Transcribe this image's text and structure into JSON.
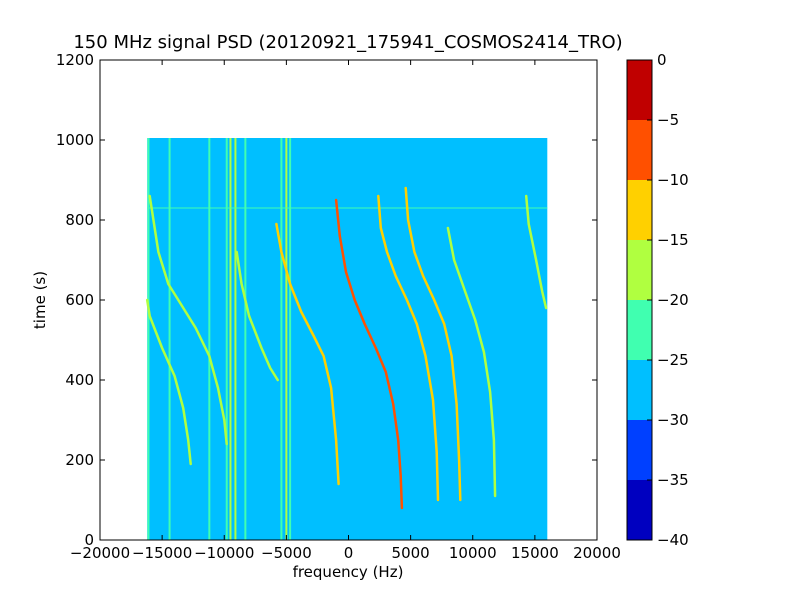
{
  "chart_data": {
    "type": "heatmap",
    "title": "150 MHz signal PSD (20120921_175941_COSMOS2414_TRO)",
    "xlabel": "frequency (Hz)",
    "ylabel": "time (s)",
    "xlim": [
      -20000,
      20000
    ],
    "ylim": [
      0,
      1200
    ],
    "x_ticks": [
      -20000,
      -15000,
      -10000,
      -5000,
      0,
      5000,
      10000,
      15000,
      20000
    ],
    "x_tick_labels": [
      "−20000",
      "−15000",
      "−10000",
      "−5000",
      "0",
      "5000",
      "10000",
      "15000",
      "20000"
    ],
    "y_ticks": [
      0,
      200,
      400,
      600,
      800,
      1000,
      1200
    ],
    "y_tick_labels": [
      "0",
      "200",
      "400",
      "600",
      "800",
      "1000",
      "1200"
    ],
    "data_extent": {
      "freq_min": -16200,
      "freq_max": 16000,
      "time_min": 0,
      "time_max": 1005
    },
    "background_level_db": -28,
    "colorbar": {
      "levels": [
        -40,
        -35,
        -30,
        -25,
        -20,
        -15,
        -10,
        -5,
        0
      ],
      "tick_labels": [
        "−40",
        "−35",
        "−30",
        "−25",
        "−20",
        "−15",
        "−10",
        "−5",
        "0"
      ],
      "colors": [
        "#0000c0",
        "#0040ff",
        "#00bfff",
        "#40ffb0",
        "#b0ff40",
        "#ffd000",
        "#ff5000",
        "#c00000"
      ]
    },
    "vertical_lines": [
      {
        "freq": -16100,
        "level_db": -24
      },
      {
        "freq": -14400,
        "level_db": -24
      },
      {
        "freq": -11200,
        "level_db": -24
      },
      {
        "freq": -9800,
        "level_db": -22
      },
      {
        "freq": -9500,
        "level_db": -18
      },
      {
        "freq": -9100,
        "level_db": -18
      },
      {
        "freq": -8300,
        "level_db": -22
      },
      {
        "freq": -5400,
        "level_db": -22
      },
      {
        "freq": -5000,
        "level_db": -18
      },
      {
        "freq": -4700,
        "level_db": -22
      }
    ],
    "horizontal_lines": [
      {
        "time": 830,
        "level_db": -24
      }
    ],
    "tracks": [
      {
        "name": "",
        "level_db": -16,
        "points": [
          [
            -16000,
            860
          ],
          [
            -15800,
            820
          ],
          [
            -15300,
            720
          ],
          [
            -14500,
            640
          ],
          [
            -13500,
            590
          ],
          [
            -12300,
            530
          ],
          [
            -11200,
            460
          ],
          [
            -10500,
            380
          ],
          [
            -10000,
            300
          ],
          [
            -9800,
            240
          ]
        ]
      },
      {
        "name": "",
        "level_db": -20,
        "points": [
          [
            -16200,
            600
          ],
          [
            -16000,
            560
          ],
          [
            -15000,
            480
          ],
          [
            -14000,
            410
          ],
          [
            -13300,
            330
          ],
          [
            -12900,
            250
          ],
          [
            -12700,
            190
          ]
        ]
      },
      {
        "name": "",
        "level_db": -18,
        "points": [
          [
            -9000,
            720
          ],
          [
            -8600,
            640
          ],
          [
            -8000,
            560
          ],
          [
            -7000,
            480
          ],
          [
            -6300,
            430
          ],
          [
            -5700,
            400
          ]
        ]
      },
      {
        "name": "",
        "level_db": -15,
        "points": [
          [
            -5800,
            790
          ],
          [
            -5400,
            720
          ],
          [
            -4700,
            640
          ],
          [
            -3800,
            570
          ],
          [
            -2800,
            510
          ],
          [
            -2000,
            460
          ],
          [
            -1400,
            380
          ],
          [
            -1000,
            250
          ],
          [
            -800,
            140
          ]
        ]
      },
      {
        "name": "",
        "level_db": -8,
        "points": [
          [
            -1000,
            850
          ],
          [
            -700,
            760
          ],
          [
            -200,
            670
          ],
          [
            500,
            600
          ],
          [
            1300,
            540
          ],
          [
            2200,
            480
          ],
          [
            3000,
            420
          ],
          [
            3600,
            340
          ],
          [
            4000,
            250
          ],
          [
            4200,
            160
          ],
          [
            4300,
            80
          ]
        ]
      },
      {
        "name": "",
        "level_db": -12,
        "points": [
          [
            2400,
            860
          ],
          [
            2600,
            780
          ],
          [
            3100,
            720
          ],
          [
            3800,
            660
          ],
          [
            4700,
            600
          ],
          [
            5500,
            540
          ],
          [
            6200,
            460
          ],
          [
            6800,
            350
          ],
          [
            7100,
            220
          ],
          [
            7200,
            100
          ]
        ]
      },
      {
        "name": "",
        "level_db": -12,
        "points": [
          [
            4600,
            880
          ],
          [
            4800,
            800
          ],
          [
            5300,
            720
          ],
          [
            6000,
            660
          ],
          [
            6900,
            600
          ],
          [
            7700,
            540
          ],
          [
            8300,
            460
          ],
          [
            8700,
            340
          ],
          [
            8900,
            200
          ],
          [
            9000,
            100
          ]
        ]
      },
      {
        "name": "",
        "level_db": -18,
        "points": [
          [
            8000,
            780
          ],
          [
            8500,
            700
          ],
          [
            9400,
            620
          ],
          [
            10200,
            550
          ],
          [
            10900,
            470
          ],
          [
            11400,
            370
          ],
          [
            11700,
            250
          ],
          [
            11800,
            110
          ]
        ]
      },
      {
        "name": "",
        "level_db": -20,
        "points": [
          [
            14300,
            860
          ],
          [
            14500,
            790
          ],
          [
            15100,
            700
          ],
          [
            15600,
            620
          ],
          [
            15900,
            580
          ]
        ]
      }
    ]
  }
}
